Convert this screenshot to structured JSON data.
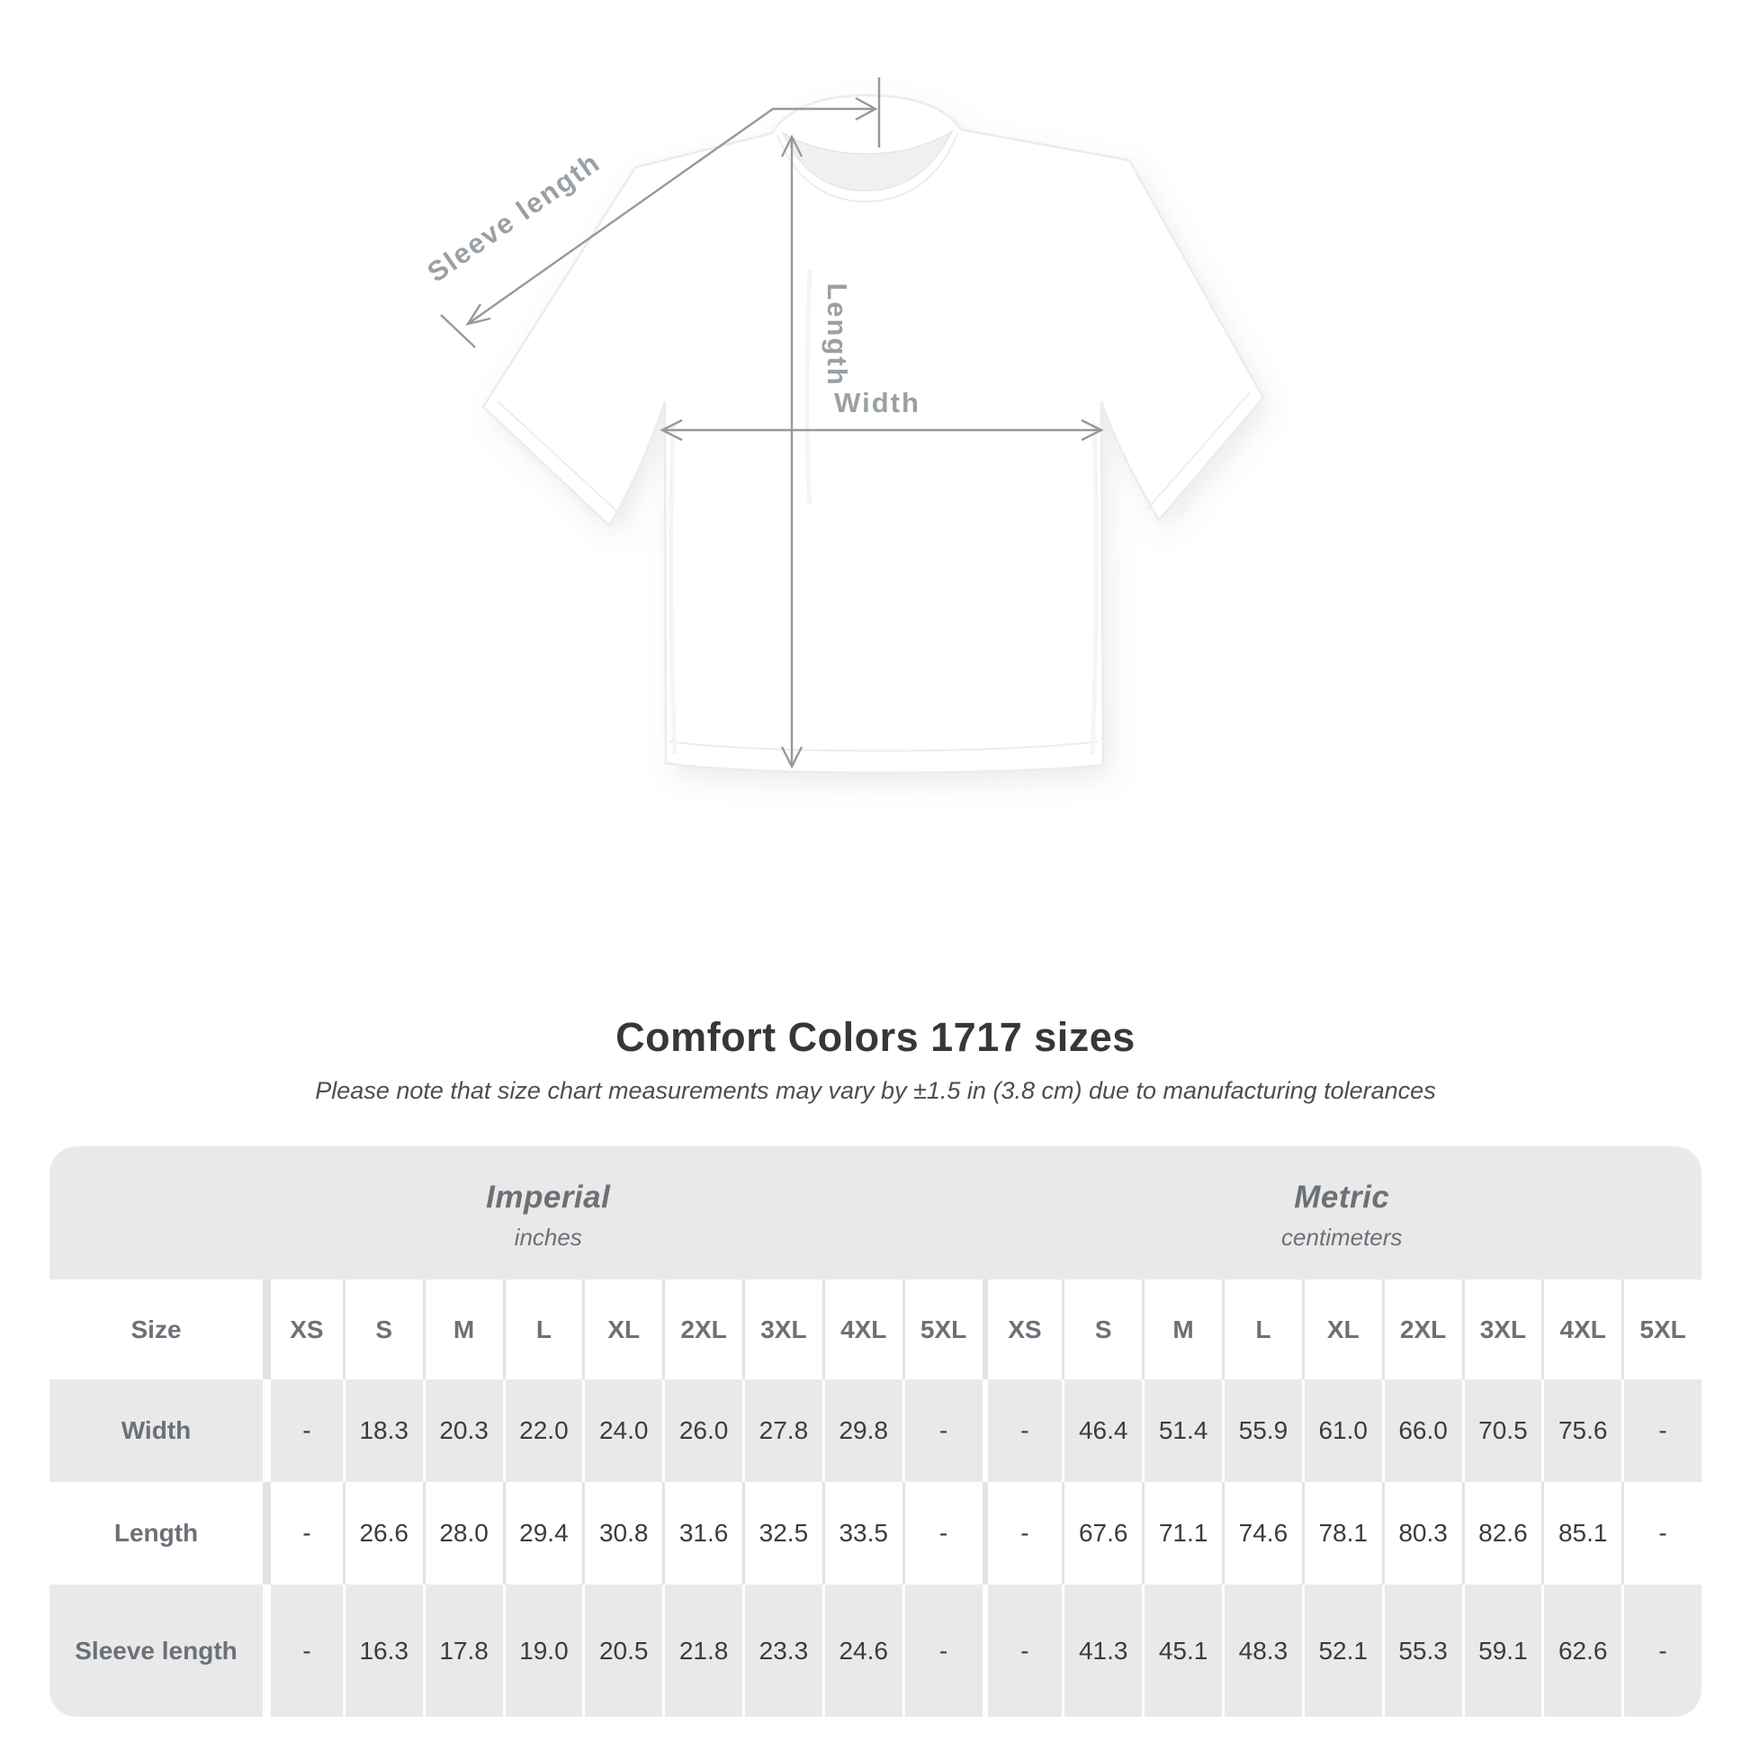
{
  "diagram": {
    "labels": {
      "sleeve_length": "Sleeve length",
      "length": "Length",
      "width": "Width"
    },
    "line_color": "#95999c",
    "label_color": "#9aa0a4"
  },
  "title": "Comfort Colors 1717 sizes",
  "subtitle": "Please note that size chart measurements may vary by ±1.5 in (3.8 cm) due to manufacturing tolerances",
  "table": {
    "size_header_label": "Size",
    "groups": [
      {
        "label": "Imperial",
        "sublabel": "inches"
      },
      {
        "label": "Metric",
        "sublabel": "centimeters"
      }
    ],
    "sizes": [
      "XS",
      "S",
      "M",
      "L",
      "XL",
      "2XL",
      "3XL",
      "4XL",
      "5XL"
    ],
    "rows": [
      {
        "label": "Width",
        "imperial": [
          "-",
          "18.3",
          "20.3",
          "22.0",
          "24.0",
          "26.0",
          "27.8",
          "29.8",
          "-"
        ],
        "metric": [
          "-",
          "46.4",
          "51.4",
          "55.9",
          "61.0",
          "66.0",
          "70.5",
          "75.6",
          "-"
        ]
      },
      {
        "label": "Length",
        "imperial": [
          "-",
          "26.6",
          "28.0",
          "29.4",
          "30.8",
          "31.6",
          "32.5",
          "33.5",
          "-"
        ],
        "metric": [
          "-",
          "67.6",
          "71.1",
          "74.6",
          "78.1",
          "80.3",
          "82.6",
          "85.1",
          "-"
        ]
      },
      {
        "label": "Sleeve length",
        "imperial": [
          "-",
          "16.3",
          "17.8",
          "19.0",
          "20.5",
          "21.8",
          "23.3",
          "24.6",
          "-"
        ],
        "metric": [
          "-",
          "41.3",
          "45.1",
          "48.3",
          "52.1",
          "55.3",
          "59.1",
          "62.6",
          "-"
        ]
      }
    ],
    "colors": {
      "stripe_gray": "#e9e9e9",
      "label_text": "#6b7177",
      "value_text": "#3a3d3f"
    }
  },
  "chart_data": {
    "type": "table",
    "title": "Comfort Colors 1717 sizes",
    "note": "Please note that size chart measurements may vary by ±1.5 in (3.8 cm) due to manufacturing tolerances",
    "column_groups": [
      "Imperial (inches)",
      "Metric (centimeters)"
    ],
    "columns": [
      "XS",
      "S",
      "M",
      "L",
      "XL",
      "2XL",
      "3XL",
      "4XL",
      "5XL"
    ],
    "series": [
      {
        "name": "Width (in)",
        "values": [
          null,
          18.3,
          20.3,
          22.0,
          24.0,
          26.0,
          27.8,
          29.8,
          null
        ]
      },
      {
        "name": "Length (in)",
        "values": [
          null,
          26.6,
          28.0,
          29.4,
          30.8,
          31.6,
          32.5,
          33.5,
          null
        ]
      },
      {
        "name": "Sleeve length (in)",
        "values": [
          null,
          16.3,
          17.8,
          19.0,
          20.5,
          21.8,
          23.3,
          24.6,
          null
        ]
      },
      {
        "name": "Width (cm)",
        "values": [
          null,
          46.4,
          51.4,
          55.9,
          61.0,
          66.0,
          70.5,
          75.6,
          null
        ]
      },
      {
        "name": "Length (cm)",
        "values": [
          null,
          67.6,
          71.1,
          74.6,
          78.1,
          80.3,
          82.6,
          85.1,
          null
        ]
      },
      {
        "name": "Sleeve length (cm)",
        "values": [
          null,
          41.3,
          45.1,
          48.3,
          52.1,
          55.3,
          59.1,
          62.6,
          null
        ]
      }
    ]
  }
}
